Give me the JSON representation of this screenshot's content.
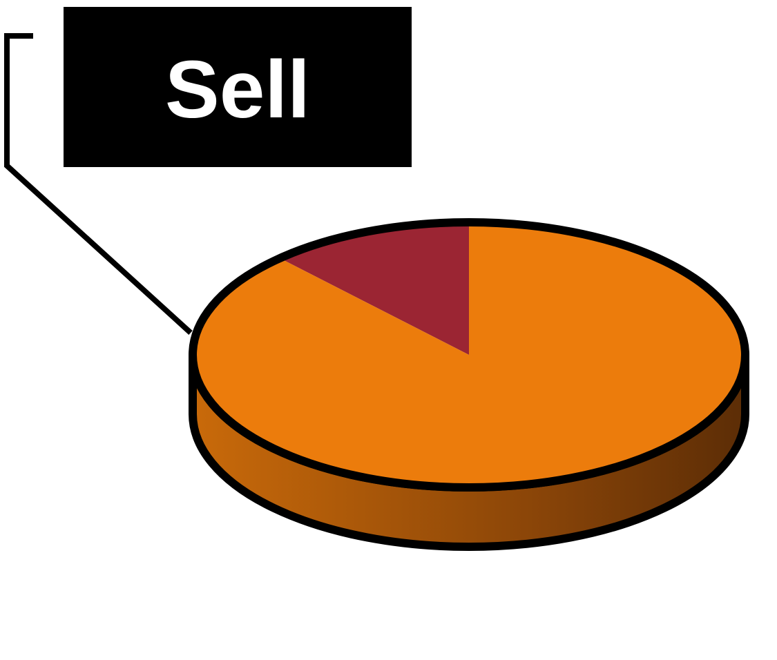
{
  "chart_data": {
    "type": "pie",
    "style": "3d",
    "slices": [
      {
        "label": "Sell",
        "value": 12,
        "color": "#9b2533"
      },
      {
        "label": "",
        "value": 88,
        "color": "#ec7c0c"
      }
    ],
    "data_labels": [
      {
        "slice": 0,
        "text": "Sell",
        "box_color": "#000000",
        "text_color": "#ffffff"
      }
    ],
    "start_angle_deg": 90,
    "direction": "counterclockwise",
    "outline_color": "#000000",
    "side_shading": [
      "#c96a0a",
      "#5c2d06"
    ]
  }
}
